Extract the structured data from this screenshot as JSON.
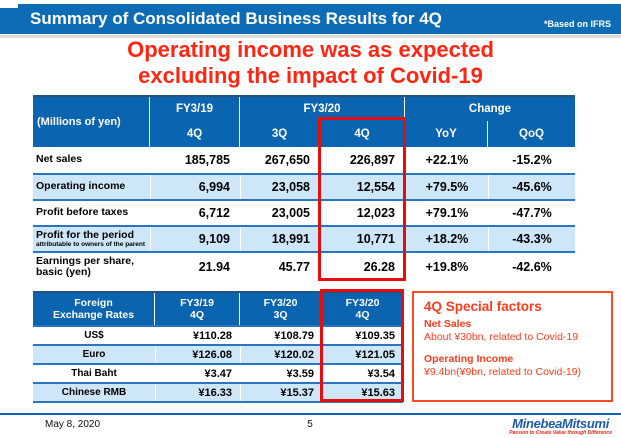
{
  "slide": {
    "title": "Summary of Consolidated Business Results for 4Q",
    "note": "*Based on IFRS",
    "headline_line1": "Operating income was as expected",
    "headline_line2": "excluding the impact of Covid-19"
  },
  "main_table": {
    "unit_label": "(Millions of yen)",
    "group_headers": {
      "fy19": "FY3/19",
      "fy20": "FY3/20",
      "change": "Change"
    },
    "sub_headers": {
      "c1": "4Q",
      "c2": "3Q",
      "c3": "4Q",
      "c4": "YoY",
      "c5": "QoQ"
    },
    "rows": [
      {
        "label": "Net sales",
        "v1": "185,785",
        "v2": "267,650",
        "v3": "226,897",
        "v4": "+22.1%",
        "v5": "-15.2%"
      },
      {
        "label": "Operating income",
        "v1": "6,994",
        "v2": "23,058",
        "v3": "12,554",
        "v4": "+79.5%",
        "v5": "-45.6%"
      },
      {
        "label": "Profit before taxes",
        "v1": "6,712",
        "v2": "23,005",
        "v3": "12,023",
        "v4": "+79.1%",
        "v5": "-47.7%"
      },
      {
        "label": "Profit for the period",
        "small": "attributable to owners of the parent",
        "v1": "9,109",
        "v2": "18,991",
        "v3": "10,771",
        "v4": "+18.2%",
        "v5": "-43.3%"
      },
      {
        "label": "Earnings per share,",
        "label2": "basic (yen)",
        "v1": "21.94",
        "v2": "45.77",
        "v3": "26.28",
        "v4": "+19.8%",
        "v5": "-42.6%"
      }
    ]
  },
  "fx_table": {
    "title_line1": "Foreign",
    "title_line2": "Exchange Rates",
    "cols": [
      {
        "l1": "FY3/19",
        "l2": "4Q"
      },
      {
        "l1": "FY3/20",
        "l2": "3Q"
      },
      {
        "l1": "FY3/20",
        "l2": "4Q"
      }
    ],
    "rows": [
      {
        "label": "US$",
        "v1": "¥110.28",
        "v2": "¥108.79",
        "v3": "¥109.35"
      },
      {
        "label": "Euro",
        "v1": "¥126.08",
        "v2": "¥120.02",
        "v3": "¥121.05"
      },
      {
        "label": "Thai Baht",
        "v1": "¥3.47",
        "v2": "¥3.59",
        "v3": "¥3.54"
      },
      {
        "label": "Chinese RMB",
        "v1": "¥16.33",
        "v2": "¥15.37",
        "v3": "¥15.63"
      }
    ]
  },
  "special_factors": {
    "title": "4Q Special factors",
    "item1_heading": "Net Sales",
    "item1_detail": "About ¥30bn, related to Covid-19",
    "item2_heading": "Operating Income",
    "item2_detail": "¥9.4bn(¥9bn, related to Covid-19)"
  },
  "footer": {
    "date": "May 8, 2020",
    "page_number": "5",
    "logo_text": "MinebeaMitsumi",
    "logo_tagline": "Passion to Create Value through Difference"
  },
  "colors": {
    "title_bar_blue": "#0d6cb5",
    "table_header_blue": "#0a64af",
    "row_light_blue": "#cde6f8",
    "row_divider_blue": "#2a74c0",
    "highlight_red": "#e50d0d",
    "headline_red": "#fe2612",
    "special_box_red": "#ff4a22",
    "logo_blue": "#1d5cab"
  }
}
